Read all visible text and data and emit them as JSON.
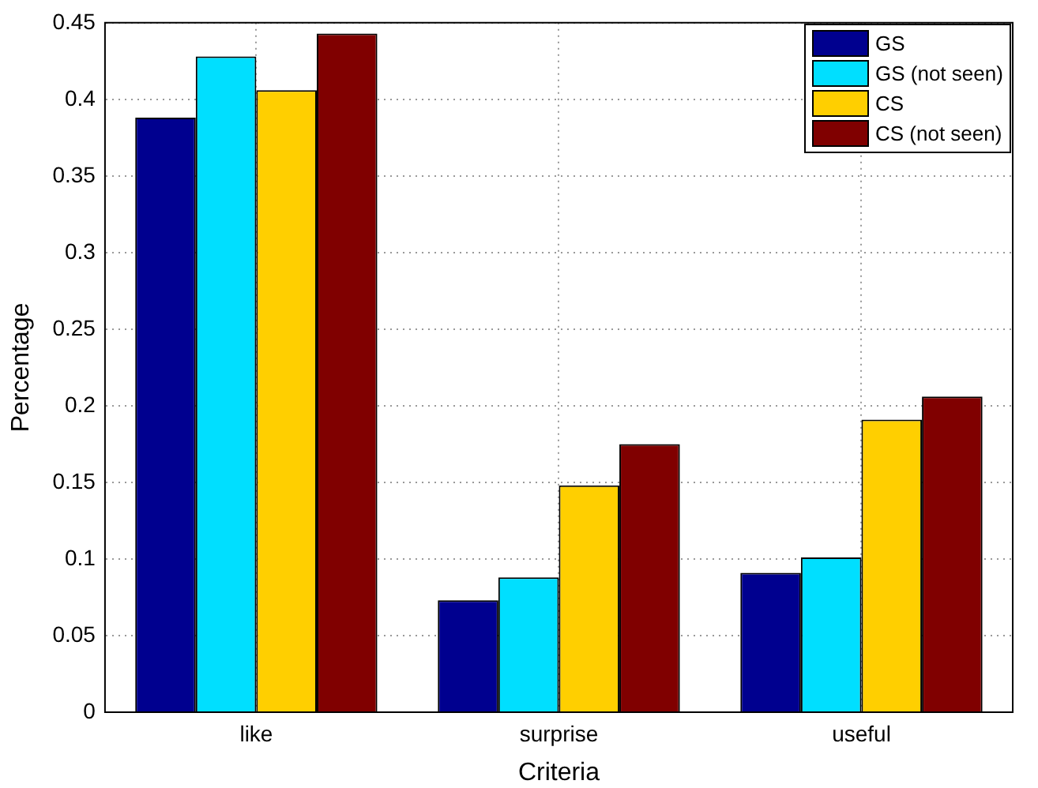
{
  "chart_data": {
    "type": "bar",
    "xlabel": "Criteria",
    "ylabel": "Percentage",
    "categories": [
      "like",
      "surprise",
      "useful"
    ],
    "series": [
      {
        "name": "GS",
        "color": "#00008f",
        "values": [
          0.388,
          0.073,
          0.091
        ]
      },
      {
        "name": "GS (not seen)",
        "color": "#00dfff",
        "values": [
          0.428,
          0.088,
          0.101
        ]
      },
      {
        "name": "CS",
        "color": "#ffcf00",
        "values": [
          0.406,
          0.148,
          0.191
        ]
      },
      {
        "name": "CS (not seen)",
        "color": "#800000",
        "values": [
          0.443,
          0.175,
          0.206
        ]
      }
    ],
    "ylim": [
      0,
      0.45
    ],
    "yticks": [
      0,
      0.05,
      0.1,
      0.15,
      0.2,
      0.25,
      0.3,
      0.35,
      0.4,
      0.45
    ],
    "grid": true,
    "legend": "top right"
  }
}
